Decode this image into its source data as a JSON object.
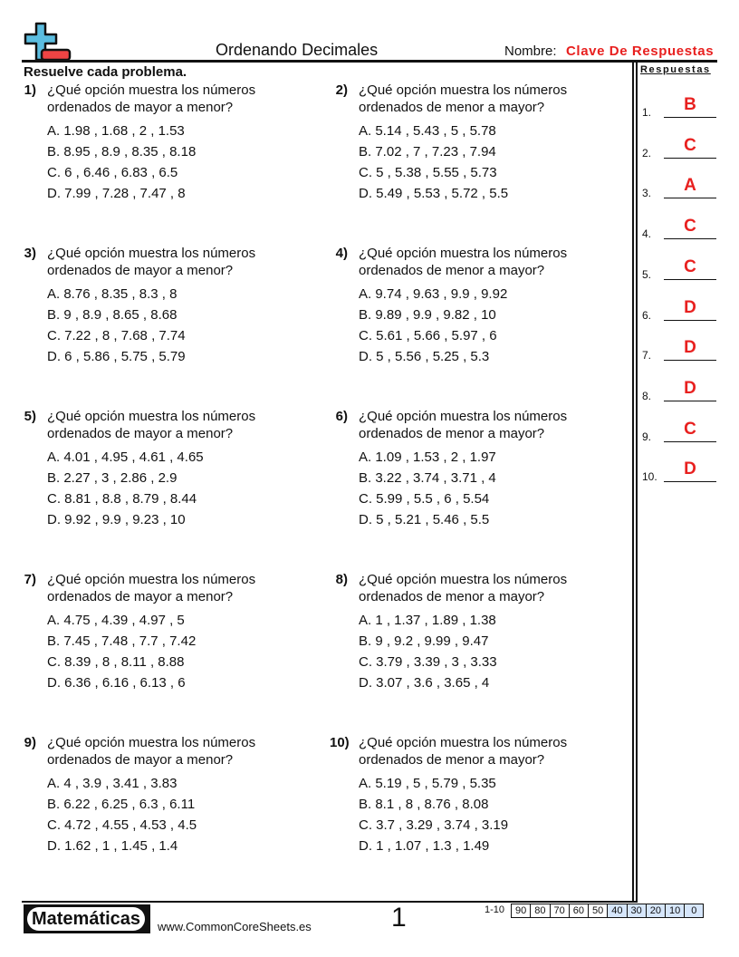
{
  "header": {
    "title": "Ordenando Decimales",
    "name_label": "Nombre:",
    "name_value": "Clave De Respuestas",
    "instructions": "Resuelve cada problema."
  },
  "colors": {
    "accent_red": "#e8201f",
    "logo_blue": "#5bbde0",
    "logo_red": "#ee4444",
    "score_highlight": "#d6e6fb"
  },
  "answers": {
    "header": "Respuestas",
    "items": [
      {
        "num": "1.",
        "value": "B"
      },
      {
        "num": "2.",
        "value": "C"
      },
      {
        "num": "3.",
        "value": "A"
      },
      {
        "num": "4.",
        "value": "C"
      },
      {
        "num": "5.",
        "value": "C"
      },
      {
        "num": "6.",
        "value": "D"
      },
      {
        "num": "7.",
        "value": "D"
      },
      {
        "num": "8.",
        "value": "D"
      },
      {
        "num": "9.",
        "value": "C"
      },
      {
        "num": "10.",
        "value": "D"
      }
    ]
  },
  "problems": [
    {
      "num": "1)",
      "q1": "¿Qué opción muestra los números",
      "q2": "ordenados de mayor a menor?",
      "options": [
        "A. 1.98 ,  1.68 ,  2 ,  1.53",
        "B. 8.95 ,  8.9 ,  8.35 ,  8.18",
        "C. 6 ,  6.46 ,  6.83 ,  6.5",
        "D. 7.99 ,  7.28 ,  7.47 ,  8"
      ]
    },
    {
      "num": "2)",
      "q1": "¿Qué opción muestra los números",
      "q2": "ordenados de menor a mayor?",
      "options": [
        "A. 5.14 ,  5.43 ,  5 ,  5.78",
        "B. 7.02 ,  7 ,  7.23 ,  7.94",
        "C. 5 ,  5.38 ,  5.55 ,  5.73",
        "D. 5.49 ,  5.53 ,  5.72 ,  5.5"
      ]
    },
    {
      "num": "3)",
      "q1": "¿Qué opción muestra los números",
      "q2": "ordenados de mayor a menor?",
      "options": [
        "A. 8.76 ,  8.35 ,  8.3 ,  8",
        "B. 9 ,  8.9 ,  8.65 ,  8.68",
        "C. 7.22 ,  8 ,  7.68 ,  7.74",
        "D. 6 ,  5.86 ,  5.75 ,  5.79"
      ]
    },
    {
      "num": "4)",
      "q1": "¿Qué opción muestra los números",
      "q2": "ordenados de menor a mayor?",
      "options": [
        "A. 9.74 ,  9.63 ,  9.9 ,  9.92",
        "B. 9.89 ,  9.9 ,  9.82 ,  10",
        "C. 5.61 ,  5.66 ,  5.97 ,  6",
        "D. 5 ,  5.56 ,  5.25 ,  5.3"
      ]
    },
    {
      "num": "5)",
      "q1": "¿Qué opción muestra los números",
      "q2": "ordenados de mayor a menor?",
      "options": [
        "A. 4.01 ,  4.95 ,  4.61 ,  4.65",
        "B. 2.27 ,  3 ,  2.86 ,  2.9",
        "C. 8.81 ,  8.8 ,  8.79 ,  8.44",
        "D. 9.92 ,  9.9 ,  9.23 ,  10"
      ]
    },
    {
      "num": "6)",
      "q1": "¿Qué opción muestra los números",
      "q2": "ordenados de menor a mayor?",
      "options": [
        "A. 1.09 ,  1.53 ,  2 ,  1.97",
        "B. 3.22 ,  3.74 ,  3.71 ,  4",
        "C. 5.99 ,  5.5 ,  6 ,  5.54",
        "D. 5 ,  5.21 ,  5.46 ,  5.5"
      ]
    },
    {
      "num": "7)",
      "q1": "¿Qué opción muestra los números",
      "q2": "ordenados de mayor a menor?",
      "options": [
        "A. 4.75 ,  4.39 ,  4.97 ,  5",
        "B. 7.45 ,  7.48 ,  7.7 ,  7.42",
        "C. 8.39 ,  8 ,  8.11 ,  8.88",
        "D. 6.36 ,  6.16 ,  6.13 ,  6"
      ]
    },
    {
      "num": "8)",
      "q1": "¿Qué opción muestra los números",
      "q2": "ordenados de menor a mayor?",
      "options": [
        "A. 1 ,  1.37 ,  1.89 ,  1.38",
        "B. 9 ,  9.2 ,  9.99 ,  9.47",
        "C. 3.79 ,  3.39 ,  3 ,  3.33",
        "D. 3.07 ,  3.6 ,  3.65 ,  4"
      ]
    },
    {
      "num": "9)",
      "q1": "¿Qué opción muestra los números",
      "q2": "ordenados de mayor a menor?",
      "options": [
        "A. 4 ,  3.9 ,  3.41 ,  3.83",
        "B. 6.22 ,  6.25 ,  6.3 ,  6.11",
        "C. 4.72 ,  4.55 ,  4.53 ,  4.5",
        "D. 1.62 ,  1 ,  1.45 ,  1.4"
      ]
    },
    {
      "num": "10)",
      "q1": "¿Qué opción muestra los números",
      "q2": "ordenados de menor a mayor?",
      "options": [
        "A. 5.19 ,  5 ,  5.79 ,  5.35",
        "B. 8.1 ,  8 ,  8.76 ,  8.08",
        "C. 3.7 ,  3.29 ,  3.74 ,  3.19",
        "D. 1 ,  1.07 ,  1.3 ,  1.49"
      ]
    }
  ],
  "footer": {
    "brand": "Matemáticas",
    "site": "www.CommonCoreSheets.es",
    "page": "1",
    "score_label": "1-10",
    "scores": [
      "90",
      "80",
      "70",
      "60",
      "50",
      "40",
      "30",
      "20",
      "10",
      "0"
    ],
    "highlighted_from": "40"
  }
}
